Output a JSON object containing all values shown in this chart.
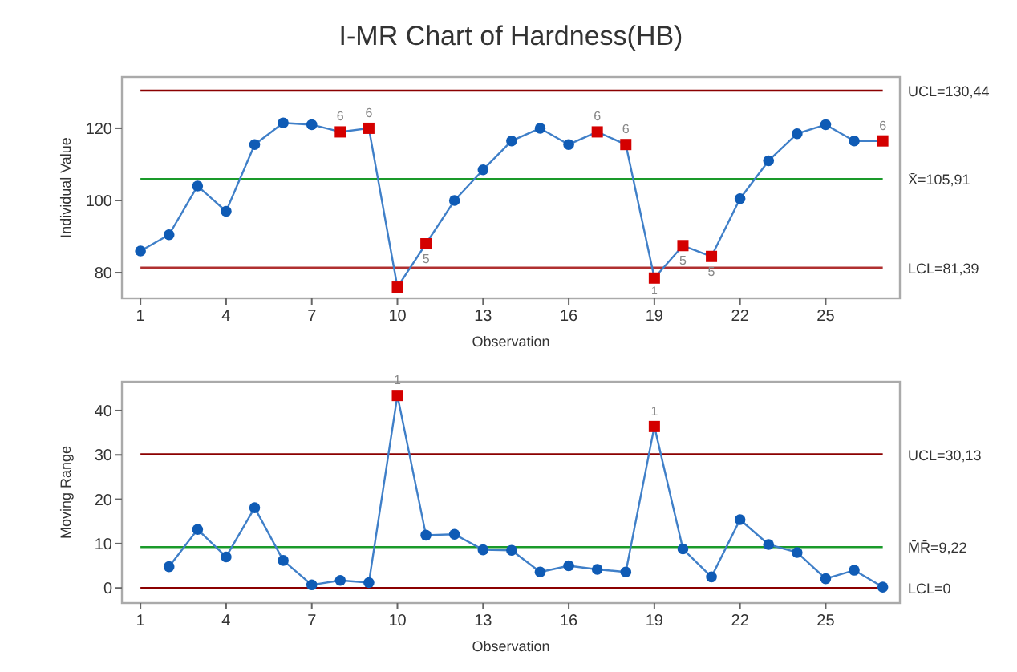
{
  "chart_data": [
    {
      "type": "line",
      "title": "I-MR Chart of Hardness(HB)",
      "xlabel": "Observation",
      "ylabel": "Individual Value",
      "x": [
        1,
        2,
        3,
        4,
        5,
        6,
        7,
        8,
        9,
        10,
        11,
        12,
        13,
        14,
        15,
        16,
        17,
        18,
        19,
        20,
        21,
        22,
        23,
        24,
        25,
        26,
        27
      ],
      "xlim": [
        0.35,
        27.6
      ],
      "xticks": [
        1,
        4,
        7,
        10,
        13,
        16,
        19,
        22,
        25
      ],
      "ylim": [
        72.9,
        134.2
      ],
      "yticks": [
        80,
        100,
        120
      ],
      "grid": false,
      "series": [
        {
          "type": "line",
          "color": "#3f7fc8",
          "marker": "none",
          "values": [
            86,
            90.5,
            104,
            97,
            115.5,
            121.5,
            121,
            119,
            120,
            76,
            88,
            100,
            108.5,
            116.5,
            120,
            115.5,
            119,
            115.5,
            78.5,
            87.5,
            84.5,
            100.5,
            111,
            118.5,
            121,
            116.5,
            116.5
          ]
        },
        {
          "type": "scatter",
          "color": "#0f5bb5",
          "marker": "circle",
          "x": [
            1,
            2,
            3,
            4,
            5,
            6,
            7,
            12,
            13,
            14,
            15,
            16,
            22,
            23,
            24,
            25,
            26
          ],
          "values": [
            86,
            90.5,
            104,
            97,
            115.5,
            121.5,
            121,
            100,
            108.5,
            116.5,
            120,
            115.5,
            100.5,
            111,
            118.5,
            121,
            116.5
          ]
        },
        {
          "type": "scatter",
          "color": "#d40000",
          "marker": "square",
          "x": [
            8,
            9,
            10,
            11,
            17,
            18,
            19,
            20,
            21,
            27
          ],
          "values": [
            119,
            120,
            76,
            88,
            119,
            115.5,
            78.5,
            87.5,
            84.5,
            116.5
          ]
        }
      ],
      "ref_lines": [
        {
          "axis": "y",
          "value": 130.44,
          "label": "UCL=130,44",
          "color": "#8b0000"
        },
        {
          "axis": "y",
          "value": 105.91,
          "label": "X̄=105,91",
          "color": "#1a9a2a"
        },
        {
          "axis": "y",
          "value": 81.39,
          "label": "LCL=81,39",
          "color": "#b03030"
        }
      ],
      "annotations": [
        {
          "text": "6",
          "x": 8,
          "y": 119
        },
        {
          "text": "6",
          "x": 9,
          "y": 120
        },
        {
          "text": "5",
          "x": 11,
          "y": 88
        },
        {
          "text": "6",
          "x": 17,
          "y": 119
        },
        {
          "text": "6",
          "x": 18,
          "y": 115.5
        },
        {
          "text": "1",
          "x": 19,
          "y": 78.5
        },
        {
          "text": "5",
          "x": 20,
          "y": 87.5
        },
        {
          "text": "5",
          "x": 21,
          "y": 84.5
        },
        {
          "text": "6",
          "x": 27,
          "y": 116.5
        }
      ]
    },
    {
      "type": "line",
      "xlabel": "Observation",
      "ylabel": "Moving Range",
      "xlim": [
        0.35,
        27.6
      ],
      "xticks": [
        1,
        4,
        7,
        10,
        13,
        16,
        19,
        22,
        25
      ],
      "ylim": [
        -3.4,
        46.5
      ],
      "yticks": [
        0,
        10,
        20,
        30,
        40
      ],
      "grid": false,
      "series": [
        {
          "type": "line",
          "color": "#3f7fc8",
          "marker": "none",
          "x": [
            2,
            3,
            4,
            5,
            6,
            7,
            8,
            9,
            10,
            11,
            12,
            13,
            14,
            15,
            16,
            17,
            18,
            19,
            20,
            21,
            22,
            23,
            24,
            25,
            26,
            27
          ],
          "values": [
            4.8,
            13.2,
            7,
            18.1,
            6.2,
            0.7,
            1.7,
            1.2,
            43.4,
            11.9,
            12.1,
            8.6,
            8.5,
            3.6,
            5,
            4.2,
            3.6,
            36.4,
            8.8,
            2.5,
            15.4,
            9.8,
            8,
            2.1,
            4,
            0.2
          ]
        },
        {
          "type": "scatter",
          "color": "#0f5bb5",
          "marker": "circle",
          "x": [
            2,
            3,
            4,
            5,
            6,
            7,
            8,
            9,
            11,
            12,
            13,
            14,
            15,
            16,
            17,
            18,
            20,
            21,
            22,
            23,
            24,
            25,
            26,
            27
          ],
          "values": [
            4.8,
            13.2,
            7,
            18.1,
            6.2,
            0.7,
            1.7,
            1.2,
            11.9,
            12.1,
            8.6,
            8.5,
            3.6,
            5,
            4.2,
            3.6,
            8.8,
            2.5,
            15.4,
            9.8,
            8,
            2.1,
            4,
            0.2
          ]
        },
        {
          "type": "scatter",
          "color": "#d40000",
          "marker": "square",
          "x": [
            10,
            19
          ],
          "values": [
            43.4,
            36.4
          ]
        }
      ],
      "ref_lines": [
        {
          "axis": "y",
          "value": 30.13,
          "label": "UCL=30,13",
          "color": "#8b0000"
        },
        {
          "axis": "y",
          "value": 9.22,
          "label": "M̄R̄=9,22",
          "color": "#1a9a2a"
        },
        {
          "axis": "y",
          "value": 0,
          "label": "LCL=0",
          "color": "#8b0000"
        }
      ],
      "annotations": [
        {
          "text": "1",
          "x": 10,
          "y": 43.4
        },
        {
          "text": "1",
          "x": 19,
          "y": 36.4
        }
      ]
    }
  ]
}
